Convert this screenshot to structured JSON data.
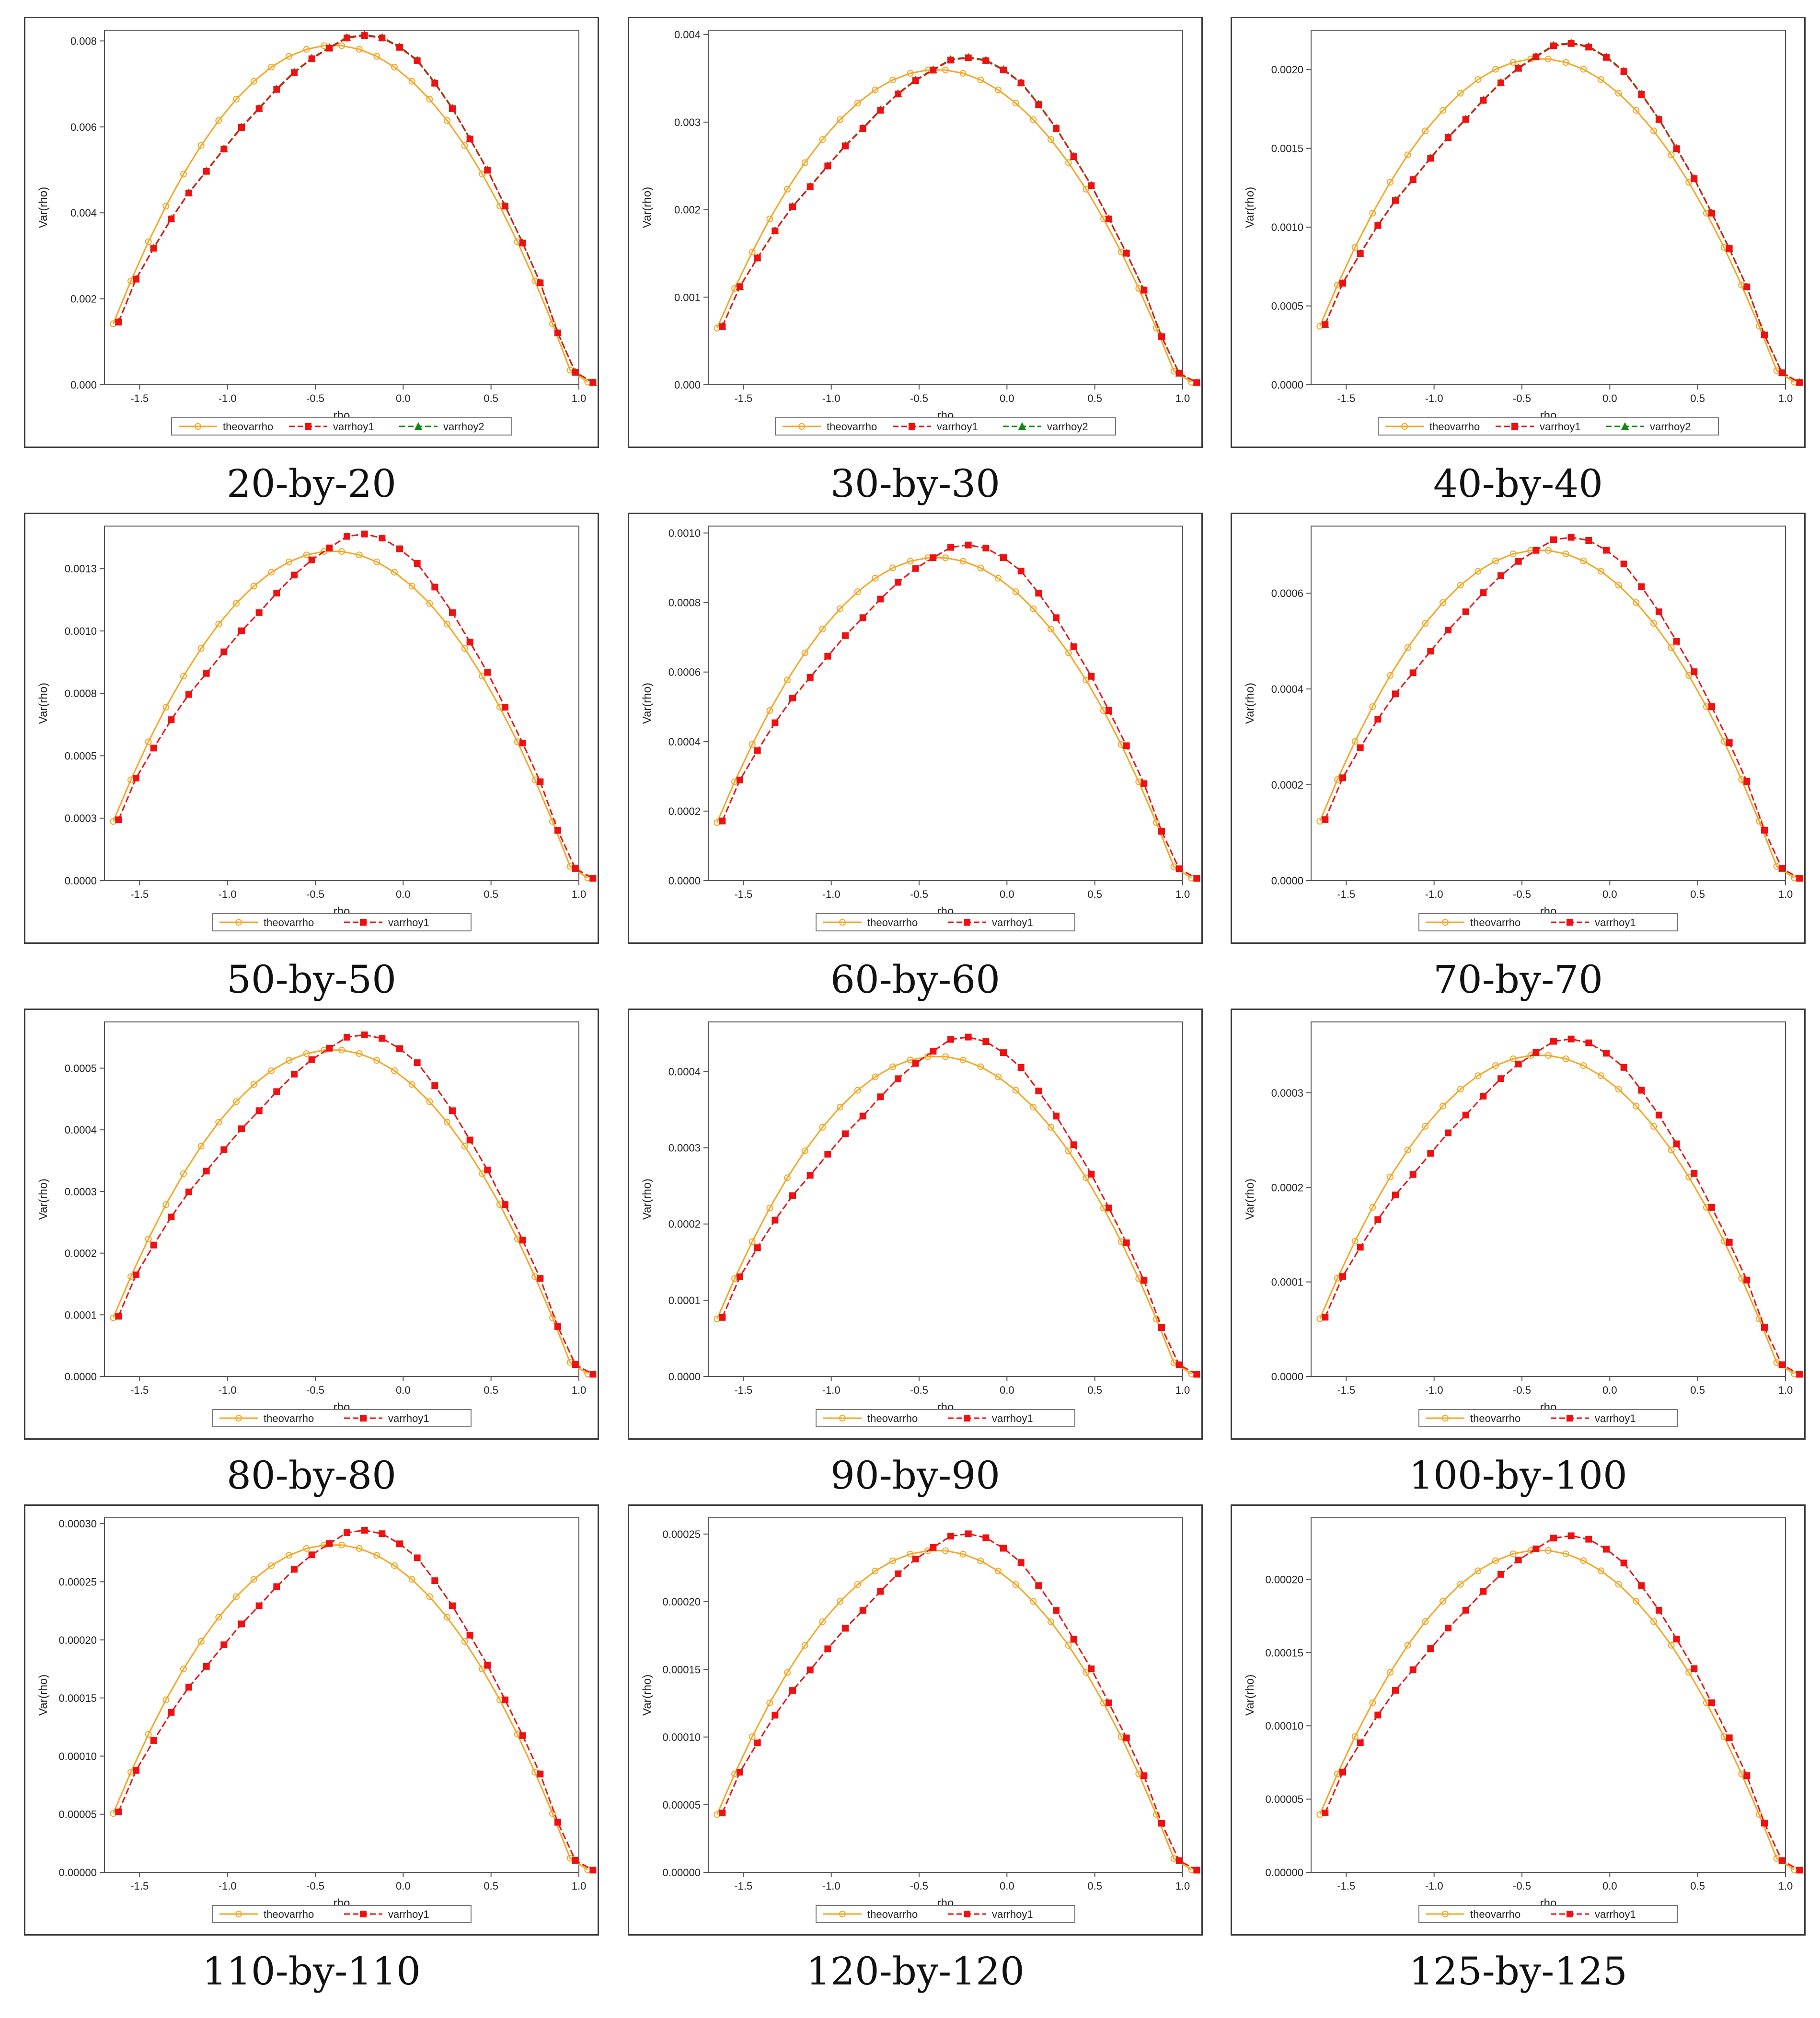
{
  "page": {
    "colors": {
      "theovarrho": "#f5a623",
      "varrhoy1": "#ee1111",
      "varrhoy2": "#118811"
    }
  },
  "common": {
    "xlabel": "rho",
    "ylabel": "Var(rho)",
    "xticks": [
      -1.5,
      -1.0,
      -0.5,
      0.0,
      0.5,
      1.0
    ],
    "xtick_labels": [
      "-1.5",
      "-1.0",
      "-0.5",
      "0.0",
      "0.5",
      "1.0"
    ],
    "xlim": [
      -1.7,
      1.0
    ],
    "legend_names": [
      "theovarrho",
      "varrhoy1",
      "varrhoy2"
    ]
  },
  "chart_data": [
    {
      "type": "line",
      "caption": "20-by-20",
      "ylabel": "Var(rho)",
      "xlabel": "rho",
      "yticks": [
        0,
        0.002,
        0.004,
        0.006,
        0.008
      ],
      "ytick_labels": [
        "0.000",
        "0.002",
        "0.004",
        "0.006",
        "0.008"
      ],
      "ylim": [
        0,
        0.00825
      ],
      "theory_peak": 0.0079,
      "var1_peak": 0.0081,
      "has_y2": true,
      "series": [
        {
          "name": "theovarrho"
        },
        {
          "name": "varrhoy1"
        },
        {
          "name": "varrhoy2"
        }
      ],
      "legend_placement": "bottom"
    },
    {
      "type": "line",
      "caption": "30-by-30",
      "ylabel": "Var(rho)",
      "xlabel": "rho",
      "yticks": [
        0,
        0.001,
        0.002,
        0.003,
        0.004
      ],
      "ytick_labels": [
        "0.000",
        "0.001",
        "0.002",
        "0.003",
        "0.004"
      ],
      "ylim": [
        0,
        0.00405
      ],
      "theory_peak": 0.0036,
      "var1_peak": 0.00375,
      "has_y2": true,
      "series": [
        {
          "name": "theovarrho"
        },
        {
          "name": "varrhoy1"
        },
        {
          "name": "varrhoy2"
        }
      ],
      "legend_placement": "bottom"
    },
    {
      "type": "line",
      "caption": "40-by-40",
      "ylabel": "Var(rho)",
      "xlabel": "rho",
      "yticks": [
        0,
        0.0005,
        0.001,
        0.0015,
        0.002
      ],
      "ytick_labels": [
        "0.0000",
        "0.0005",
        "0.0010",
        "0.0015",
        "0.0020"
      ],
      "ylim": [
        0,
        0.00225
      ],
      "theory_peak": 0.00207,
      "var1_peak": 0.00219,
      "has_y2": true,
      "series": [
        {
          "name": "theovarrho"
        },
        {
          "name": "varrhoy1"
        },
        {
          "name": "varrhoy2"
        }
      ],
      "legend_placement": "bottom"
    },
    {
      "type": "line",
      "caption": "50-by-50",
      "ylabel": "Var(rho)",
      "xlabel": "rho",
      "yticks": [
        0,
        0.00025,
        0.0005,
        0.00075,
        0.001,
        0.00125
      ],
      "ytick_labels": [
        "0.0000",
        "0.0003",
        "0.0005",
        "0.0008",
        "0.0010",
        "0.0013"
      ],
      "ylim": [
        0,
        0.00142
      ],
      "theory_peak": 0.00132,
      "var1_peak": 0.00141,
      "has_y2": false,
      "series": [
        {
          "name": "theovarrho"
        },
        {
          "name": "varrhoy1"
        }
      ],
      "legend_placement": "bottom"
    },
    {
      "type": "line",
      "caption": "60-by-60",
      "ylabel": "Var(rho)",
      "xlabel": "rho",
      "yticks": [
        0,
        0.0002,
        0.0004,
        0.0006,
        0.0008,
        0.001
      ],
      "ytick_labels": [
        "0.0000",
        "0.0002",
        "0.0004",
        "0.0006",
        "0.0008",
        "0.0010"
      ],
      "ylim": [
        0,
        0.00102
      ],
      "theory_peak": 0.00093,
      "var1_peak": 0.00097,
      "has_y2": false,
      "series": [
        {
          "name": "theovarrho"
        },
        {
          "name": "varrhoy1"
        }
      ],
      "legend_placement": "bottom"
    },
    {
      "type": "line",
      "caption": "70-by-70",
      "ylabel": "Var(rho)",
      "xlabel": "rho",
      "yticks": [
        0,
        0.0002,
        0.0004,
        0.0006
      ],
      "ytick_labels": [
        "0.0000",
        "0.0002",
        "0.0004",
        "0.0006"
      ],
      "ylim": [
        0,
        0.00074
      ],
      "theory_peak": 0.00069,
      "var1_peak": 0.00072,
      "has_y2": false,
      "series": [
        {
          "name": "theovarrho"
        },
        {
          "name": "varrhoy1"
        }
      ],
      "legend_placement": "bottom"
    },
    {
      "type": "line",
      "caption": "80-by-80",
      "ylabel": "Var(rho)",
      "xlabel": "rho",
      "yticks": [
        0,
        0.0001,
        0.0002,
        0.0003,
        0.0004,
        0.0005
      ],
      "ytick_labels": [
        "0.0000",
        "0.0001",
        "0.0002",
        "0.0003",
        "0.0004",
        "0.0005"
      ],
      "ylim": [
        0,
        0.000575
      ],
      "theory_peak": 0.00053,
      "var1_peak": 0.00056,
      "has_y2": false,
      "series": [
        {
          "name": "theovarrho"
        },
        {
          "name": "varrhoy1"
        }
      ],
      "legend_placement": "bottom"
    },
    {
      "type": "line",
      "caption": "90-by-90",
      "ylabel": "Var(rho)",
      "xlabel": "rho",
      "yticks": [
        0,
        0.0001,
        0.0002,
        0.0003,
        0.0004
      ],
      "ytick_labels": [
        "0.0000",
        "0.0001",
        "0.0002",
        "0.0003",
        "0.0004"
      ],
      "ylim": [
        0,
        0.000465
      ],
      "theory_peak": 0.00042,
      "var1_peak": 0.000455,
      "has_y2": false,
      "series": [
        {
          "name": "theovarrho"
        },
        {
          "name": "varrhoy1"
        }
      ],
      "legend_placement": "bottom"
    },
    {
      "type": "line",
      "caption": "100-by-100",
      "ylabel": "Var(rho)",
      "xlabel": "rho",
      "yticks": [
        0,
        0.0001,
        0.0002,
        0.0003
      ],
      "ytick_labels": [
        "0.0000",
        "0.0001",
        "0.0002",
        "0.0003"
      ],
      "ylim": [
        0,
        0.000375
      ],
      "theory_peak": 0.00034,
      "var1_peak": 0.000362,
      "has_y2": false,
      "series": [
        {
          "name": "theovarrho"
        },
        {
          "name": "varrhoy1"
        }
      ],
      "legend_placement": "bottom"
    },
    {
      "type": "line",
      "caption": "110-by-110",
      "ylabel": "Var(rho)",
      "xlabel": "rho",
      "yticks": [
        0,
        5e-05,
        0.0001,
        0.00015,
        0.0002,
        0.00025,
        0.0003
      ],
      "ytick_labels": [
        "0.00000",
        "0.00005",
        "0.00010",
        "0.00015",
        "0.00020",
        "0.00025",
        "0.00030"
      ],
      "ylim": [
        0,
        0.000305
      ],
      "theory_peak": 0.000282,
      "var1_peak": 0.000297,
      "has_y2": false,
      "series": [
        {
          "name": "theovarrho"
        },
        {
          "name": "varrhoy1"
        }
      ],
      "legend_placement": "bottom"
    },
    {
      "type": "line",
      "caption": "120-by-120",
      "ylabel": "Var(rho)",
      "xlabel": "rho",
      "yticks": [
        0,
        5e-05,
        0.0001,
        0.00015,
        0.0002,
        0.00025
      ],
      "ytick_labels": [
        "0.00000",
        "0.00005",
        "0.00010",
        "0.00015",
        "0.00020",
        "0.00025"
      ],
      "ylim": [
        0,
        0.000262
      ],
      "theory_peak": 0.000238,
      "var1_peak": 0.000254,
      "has_y2": false,
      "series": [
        {
          "name": "theovarrho"
        },
        {
          "name": "varrhoy1"
        }
      ],
      "legend_placement": "bottom"
    },
    {
      "type": "line",
      "caption": "125-by-125",
      "ylabel": "Var(rho)",
      "xlabel": "rho",
      "yticks": [
        0,
        5e-05,
        0.0001,
        0.00015,
        0.0002
      ],
      "ytick_labels": [
        "0.00000",
        "0.00005",
        "0.00010",
        "0.00015",
        "0.00020"
      ],
      "ylim": [
        0,
        0.000242
      ],
      "theory_peak": 0.00022,
      "var1_peak": 0.000232,
      "has_y2": false,
      "series": [
        {
          "name": "theovarrho"
        },
        {
          "name": "varrhoy1"
        }
      ],
      "legend_placement": "bottom"
    }
  ]
}
